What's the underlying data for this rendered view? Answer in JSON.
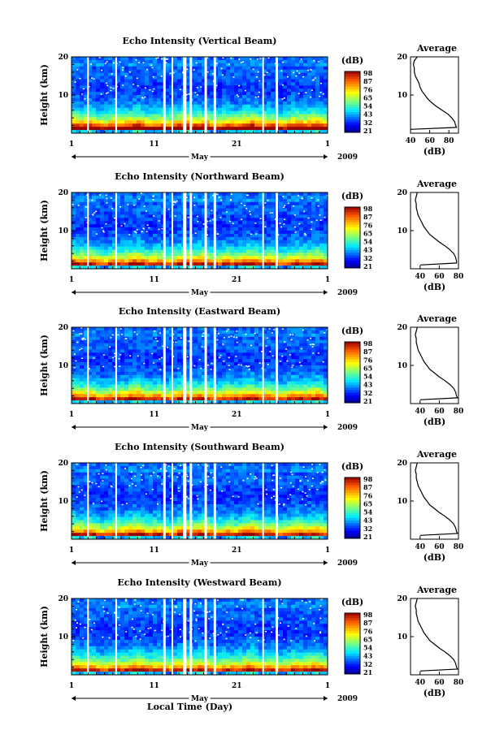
{
  "chart_data": [
    {
      "type": "heatmap",
      "title": "Echo Intensity (Vertical Beam)",
      "ylabel": "Height (km)",
      "yticks": [
        "20",
        "10"
      ],
      "ylim": [
        0,
        20
      ],
      "xticks": [
        "1",
        "11",
        "21",
        "1"
      ],
      "month": "May",
      "year": "2009",
      "colorbar": {
        "unit": "(dB)",
        "labels": [
          "98",
          "87",
          "76",
          "65",
          "54",
          "43",
          "32",
          "21"
        ],
        "range": [
          21,
          98
        ]
      },
      "gaps_day": [
        2.9,
        3.1,
        6.3,
        6.5,
        12.1,
        12.4,
        13.1,
        13.3,
        14.5,
        14.9,
        15.3,
        15.6,
        17.1,
        17.4,
        18.2,
        18.5,
        24.1,
        24.3,
        25.7,
        26.0
      ],
      "average": {
        "title": "Average",
        "xlabel": "(dB)",
        "xticks": [
          "40",
          "60",
          "80"
        ],
        "xlim": [
          40,
          90
        ],
        "ylim": [
          0,
          20
        ],
        "yticks": [
          "20",
          "10"
        ],
        "profile": [
          [
            1,
            40
          ],
          [
            1.5,
            88
          ],
          [
            2,
            87
          ],
          [
            3,
            86
          ],
          [
            4,
            83
          ],
          [
            5,
            79
          ],
          [
            6,
            73
          ],
          [
            7,
            67
          ],
          [
            8,
            62
          ],
          [
            9,
            58
          ],
          [
            10,
            55
          ],
          [
            11,
            52
          ],
          [
            12,
            50
          ],
          [
            13,
            49
          ],
          [
            14,
            47
          ],
          [
            15,
            45
          ],
          [
            16,
            44
          ],
          [
            17,
            44
          ],
          [
            18,
            43
          ],
          [
            19,
            44
          ],
          [
            20,
            47
          ]
        ]
      }
    },
    {
      "type": "heatmap",
      "title": "Echo Intensity (Northward Beam)",
      "ylabel": "Height (km)",
      "yticks": [
        "20",
        "10"
      ],
      "ylim": [
        0,
        20
      ],
      "xticks": [
        "1",
        "11",
        "21",
        "1"
      ],
      "month": "May",
      "year": "2009",
      "colorbar": {
        "unit": "(dB)",
        "labels": [
          "98",
          "87",
          "76",
          "65",
          "54",
          "43",
          "32",
          "21"
        ],
        "range": [
          21,
          98
        ]
      },
      "gaps_day": [
        2.9,
        3.1,
        6.3,
        6.5,
        12.1,
        12.4,
        13.1,
        13.3,
        14.5,
        14.9,
        15.3,
        15.6,
        17.1,
        17.4,
        18.2,
        18.5,
        24.1,
        24.3,
        25.7,
        26.0
      ],
      "average": {
        "title": "Average",
        "xlabel": "(dB)",
        "xticks": [
          "40",
          "60",
          "80"
        ],
        "xlim": [
          30,
          80
        ],
        "ylim": [
          0,
          20
        ],
        "yticks": [
          "20",
          "10"
        ],
        "profile": [
          [
            1,
            40
          ],
          [
            1.5,
            78
          ],
          [
            2,
            78
          ],
          [
            3,
            77
          ],
          [
            4,
            75
          ],
          [
            5,
            71
          ],
          [
            6,
            66
          ],
          [
            7,
            60
          ],
          [
            8,
            55
          ],
          [
            9,
            50
          ],
          [
            10,
            47
          ],
          [
            11,
            44
          ],
          [
            12,
            42
          ],
          [
            13,
            40
          ],
          [
            14,
            38
          ],
          [
            15,
            37
          ],
          [
            16,
            36
          ],
          [
            17,
            36
          ],
          [
            18,
            35
          ],
          [
            19,
            36
          ],
          [
            20,
            37
          ]
        ]
      }
    },
    {
      "type": "heatmap",
      "title": "Echo Intensity (Eastward Beam)",
      "ylabel": "Height (km)",
      "yticks": [
        "20",
        "10"
      ],
      "ylim": [
        0,
        20
      ],
      "xticks": [
        "1",
        "11",
        "21",
        "1"
      ],
      "month": "May",
      "year": "2009",
      "colorbar": {
        "unit": "(dB)",
        "labels": [
          "98",
          "87",
          "76",
          "65",
          "54",
          "43",
          "32",
          "21"
        ],
        "range": [
          21,
          98
        ]
      },
      "gaps_day": [
        2.9,
        3.1,
        6.3,
        6.5,
        12.1,
        12.4,
        13.1,
        13.3,
        14.5,
        14.9,
        15.3,
        15.6,
        17.1,
        17.4,
        18.2,
        18.5,
        24.1,
        24.3,
        25.7,
        26.0
      ],
      "average": {
        "title": "Average",
        "xlabel": "(dB)",
        "xticks": [
          "40",
          "60",
          "80"
        ],
        "xlim": [
          30,
          80
        ],
        "ylim": [
          0,
          20
        ],
        "yticks": [
          "20",
          "10"
        ],
        "profile": [
          [
            1,
            40
          ],
          [
            1.5,
            79
          ],
          [
            2,
            78
          ],
          [
            3,
            77
          ],
          [
            4,
            75
          ],
          [
            5,
            71
          ],
          [
            6,
            66
          ],
          [
            7,
            60
          ],
          [
            8,
            55
          ],
          [
            9,
            50
          ],
          [
            10,
            47
          ],
          [
            11,
            44
          ],
          [
            12,
            42
          ],
          [
            13,
            40
          ],
          [
            14,
            38
          ],
          [
            15,
            37
          ],
          [
            16,
            36
          ],
          [
            17,
            36
          ],
          [
            18,
            35
          ],
          [
            19,
            36
          ],
          [
            20,
            37
          ]
        ]
      }
    },
    {
      "type": "heatmap",
      "title": "Echo Intensity (Southward Beam)",
      "ylabel": "Height (km)",
      "yticks": [
        "20",
        "10"
      ],
      "ylim": [
        0,
        20
      ],
      "xticks": [
        "1",
        "11",
        "21",
        "1"
      ],
      "month": "May",
      "year": "2009",
      "colorbar": {
        "unit": "(dB)",
        "labels": [
          "98",
          "87",
          "76",
          "65",
          "54",
          "43",
          "32",
          "21"
        ],
        "range": [
          21,
          98
        ]
      },
      "gaps_day": [
        2.9,
        3.1,
        6.3,
        6.5,
        12.1,
        12.4,
        13.1,
        13.3,
        14.5,
        14.9,
        15.3,
        15.6,
        17.1,
        17.4,
        18.2,
        18.5,
        24.1,
        24.3,
        25.7,
        26.0
      ],
      "average": {
        "title": "Average",
        "xlabel": "(dB)",
        "xticks": [
          "40",
          "60",
          "80"
        ],
        "xlim": [
          30,
          80
        ],
        "ylim": [
          0,
          20
        ],
        "yticks": [
          "20",
          "10"
        ],
        "profile": [
          [
            1,
            40
          ],
          [
            1.5,
            79
          ],
          [
            2,
            78
          ],
          [
            3,
            77
          ],
          [
            4,
            75
          ],
          [
            5,
            71
          ],
          [
            6,
            66
          ],
          [
            7,
            60
          ],
          [
            8,
            55
          ],
          [
            9,
            50
          ],
          [
            10,
            47
          ],
          [
            11,
            44
          ],
          [
            12,
            42
          ],
          [
            13,
            40
          ],
          [
            14,
            38
          ],
          [
            15,
            37
          ],
          [
            16,
            36
          ],
          [
            17,
            36
          ],
          [
            18,
            35
          ],
          [
            19,
            36
          ],
          [
            20,
            37
          ]
        ]
      }
    },
    {
      "type": "heatmap",
      "title": "Echo Intensity (Westward Beam)",
      "ylabel": "Height (km)",
      "yticks": [
        "20",
        "10"
      ],
      "ylim": [
        0,
        20
      ],
      "xticks": [
        "1",
        "11",
        "21",
        "1"
      ],
      "month": "May",
      "year": "2009",
      "xlabel": "Local Time (Day)",
      "colorbar": {
        "unit": "(dB)",
        "labels": [
          "98",
          "87",
          "76",
          "65",
          "54",
          "43",
          "32",
          "21"
        ],
        "range": [
          21,
          98
        ]
      },
      "gaps_day": [
        2.9,
        3.1,
        6.3,
        6.5,
        12.1,
        12.4,
        13.1,
        13.3,
        14.5,
        14.9,
        15.3,
        15.6,
        17.1,
        17.4,
        18.2,
        18.5,
        24.1,
        24.3,
        25.7,
        26.0
      ],
      "average": {
        "title": "Average",
        "xlabel": "(dB)",
        "xticks": [
          "40",
          "60",
          "80"
        ],
        "xlim": [
          30,
          80
        ],
        "ylim": [
          0,
          20
        ],
        "yticks": [
          "20",
          "10"
        ],
        "profile": [
          [
            1,
            40
          ],
          [
            1.5,
            79
          ],
          [
            2,
            78
          ],
          [
            3,
            77
          ],
          [
            4,
            75
          ],
          [
            5,
            71
          ],
          [
            6,
            66
          ],
          [
            7,
            60
          ],
          [
            8,
            55
          ],
          [
            9,
            50
          ],
          [
            10,
            47
          ],
          [
            11,
            44
          ],
          [
            12,
            42
          ],
          [
            13,
            40
          ],
          [
            14,
            38
          ],
          [
            15,
            37
          ],
          [
            16,
            36
          ],
          [
            17,
            36
          ],
          [
            18,
            35
          ],
          [
            19,
            36
          ],
          [
            20,
            37
          ]
        ]
      }
    }
  ]
}
